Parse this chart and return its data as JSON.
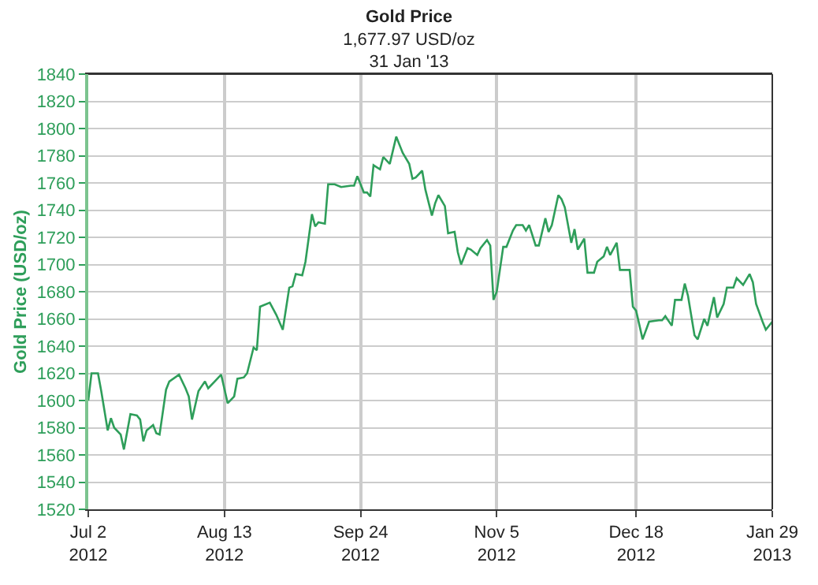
{
  "chart_data": {
    "type": "line",
    "title": "Gold Price",
    "subtitle": "1,677.97 USD/oz\n31 Jan '13",
    "ylabel": "Gold Price (USD/oz)",
    "x": [
      "2012-07-02",
      "2012-07-03",
      "2012-07-05",
      "2012-07-06",
      "2012-07-08",
      "2012-07-09",
      "2012-07-10",
      "2012-07-12",
      "2012-07-13",
      "2012-07-15",
      "2012-07-17",
      "2012-07-18",
      "2012-07-19",
      "2012-07-20",
      "2012-07-22",
      "2012-07-23",
      "2012-07-24",
      "2012-07-26",
      "2012-07-27",
      "2012-07-30",
      "2012-08-01",
      "2012-08-02",
      "2012-08-03",
      "2012-08-05",
      "2012-08-07",
      "2012-08-08",
      "2012-08-10",
      "2012-08-12",
      "2012-08-14",
      "2012-08-16",
      "2012-08-17",
      "2012-08-19",
      "2012-08-20",
      "2012-08-22",
      "2012-08-23",
      "2012-08-24",
      "2012-08-27",
      "2012-08-29",
      "2012-08-31",
      "2012-09-02",
      "2012-09-03",
      "2012-09-04",
      "2012-09-06",
      "2012-09-07",
      "2012-09-09",
      "2012-09-10",
      "2012-09-11",
      "2012-09-13",
      "2012-09-14",
      "2012-09-16",
      "2012-09-18",
      "2012-09-21",
      "2012-09-22",
      "2012-09-23",
      "2012-09-25",
      "2012-09-26",
      "2012-09-27",
      "2012-09-28",
      "2012-09-30",
      "2012-10-01",
      "2012-10-03",
      "2012-10-05",
      "2012-10-07",
      "2012-10-09",
      "2012-10-10",
      "2012-10-11",
      "2012-10-13",
      "2012-10-14",
      "2012-10-16",
      "2012-10-17",
      "2012-10-18",
      "2012-10-20",
      "2012-10-21",
      "2012-10-23",
      "2012-10-24",
      "2012-10-25",
      "2012-10-27",
      "2012-10-28",
      "2012-10-30",
      "2012-10-31",
      "2012-11-02",
      "2012-11-03",
      "2012-11-04",
      "2012-11-05",
      "2012-11-07",
      "2012-11-08",
      "2012-11-10",
      "2012-11-11",
      "2012-11-13",
      "2012-11-14",
      "2012-11-15",
      "2012-11-17",
      "2012-11-18",
      "2012-11-20",
      "2012-11-21",
      "2012-11-22",
      "2012-11-24",
      "2012-11-25",
      "2012-11-26",
      "2012-11-28",
      "2012-11-29",
      "2012-11-30",
      "2012-12-02",
      "2012-12-03",
      "2012-12-05",
      "2012-12-06",
      "2012-12-08",
      "2012-12-09",
      "2012-12-10",
      "2012-12-12",
      "2012-12-13",
      "2012-12-16",
      "2012-12-17",
      "2012-12-18",
      "2012-12-20",
      "2012-12-22",
      "2012-12-25",
      "2012-12-26",
      "2012-12-27",
      "2012-12-29",
      "2012-12-30",
      "2013-01-01",
      "2013-01-02",
      "2013-01-03",
      "2013-01-05",
      "2013-01-06",
      "2013-01-08",
      "2013-01-09",
      "2013-01-11",
      "2013-01-12",
      "2013-01-14",
      "2013-01-15",
      "2013-01-17",
      "2013-01-18",
      "2013-01-20",
      "2013-01-22",
      "2013-01-23",
      "2013-01-24",
      "2013-01-26",
      "2013-01-27",
      "2013-01-29"
    ],
    "series": [
      {
        "color": "#2e9e5a",
        "values": [
          1600,
          1620,
          1620,
          1607,
          1578,
          1587,
          1580,
          1575,
          1564,
          1590,
          1589,
          1586,
          1570,
          1578,
          1582,
          1576,
          1575,
          1608,
          1614,
          1619,
          1609,
          1603,
          1586,
          1607,
          1614,
          1609,
          1614,
          1619,
          1598,
          1603,
          1616,
          1617,
          1620,
          1639,
          1637,
          1669,
          1672,
          1663,
          1652,
          1683,
          1684,
          1693,
          1692,
          1702,
          1737,
          1728,
          1731,
          1730,
          1759,
          1759,
          1757,
          1758,
          1758,
          1765,
          1753,
          1753,
          1750,
          1773,
          1770,
          1779,
          1774,
          1794,
          1782,
          1774,
          1763,
          1764,
          1769,
          1755,
          1736,
          1745,
          1751,
          1743,
          1723,
          1724,
          1709,
          1700,
          1712,
          1711,
          1707,
          1712,
          1718,
          1714,
          1674,
          1680,
          1713,
          1713,
          1725,
          1729,
          1729,
          1725,
          1729,
          1714,
          1714,
          1734,
          1724,
          1729,
          1751,
          1748,
          1742,
          1716,
          1726,
          1711,
          1719,
          1694,
          1694,
          1702,
          1706,
          1713,
          1707,
          1716,
          1696,
          1696,
          1669,
          1666,
          1645,
          1658,
          1659,
          1659,
          1662,
          1655,
          1674,
          1674,
          1686,
          1677,
          1648,
          1645,
          1660,
          1655,
          1676,
          1661,
          1671,
          1683,
          1683,
          1690,
          1685,
          1693,
          1687,
          1671,
          1658,
          1652,
          1658
        ]
      }
    ],
    "xlim": [
      "2012-07-02",
      "2013-01-29"
    ],
    "xticks": [
      {
        "value": "2012-07-02",
        "label": "Jul 2\n2012"
      },
      {
        "value": "2012-08-13",
        "label": "Aug 13\n2012"
      },
      {
        "value": "2012-09-24",
        "label": "Sep 24\n2012"
      },
      {
        "value": "2012-11-05",
        "label": "Nov 5\n2012"
      },
      {
        "value": "2012-12-18",
        "label": "Dec 18\n2012"
      },
      {
        "value": "2013-01-29",
        "label": "Jan 29\n2013"
      }
    ],
    "ylim": [
      1520,
      1840
    ],
    "yticks": [
      1520,
      1540,
      1560,
      1580,
      1600,
      1620,
      1640,
      1660,
      1680,
      1700,
      1720,
      1740,
      1760,
      1780,
      1800,
      1820,
      1840
    ],
    "grid": true,
    "marker": "none",
    "line_style": "solid"
  }
}
